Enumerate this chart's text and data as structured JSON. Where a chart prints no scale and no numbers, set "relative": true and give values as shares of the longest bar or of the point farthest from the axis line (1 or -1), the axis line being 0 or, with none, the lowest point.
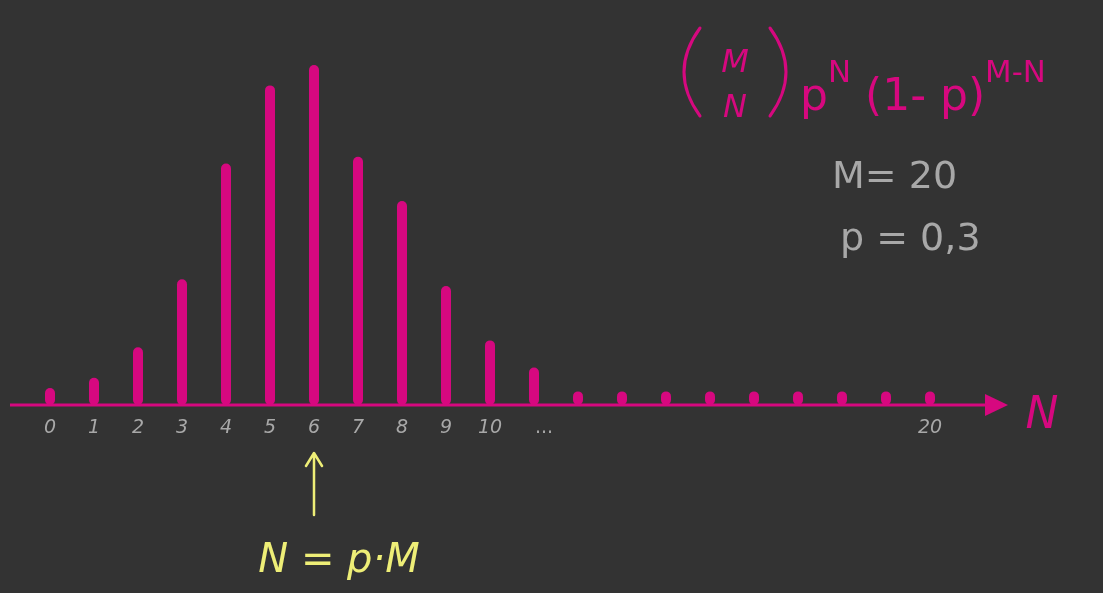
{
  "chart_data": {
    "type": "bar",
    "relative": true,
    "xlabel": "N",
    "color": "#d6087f",
    "categories": [
      "0",
      "1",
      "2",
      "3",
      "4",
      "5",
      "6",
      "7",
      "8",
      "9",
      "10",
      null,
      null,
      null,
      null,
      null,
      null,
      null,
      null,
      null,
      "20"
    ],
    "values": [
      0.05,
      0.08,
      0.17,
      0.37,
      0.71,
      0.94,
      1,
      0.73,
      0.6,
      0.35,
      0.19,
      0.11,
      0.04,
      0.04,
      0.04,
      0.04,
      0.04,
      0.04,
      0.04,
      0.04,
      0.04
    ],
    "annotations": [
      "M",
      "N",
      "p$^{N}$ (1- p)$^{M-N}$",
      "M= 20",
      "p = 0,3",
      "N = p·M",
      "..."
    ]
  }
}
